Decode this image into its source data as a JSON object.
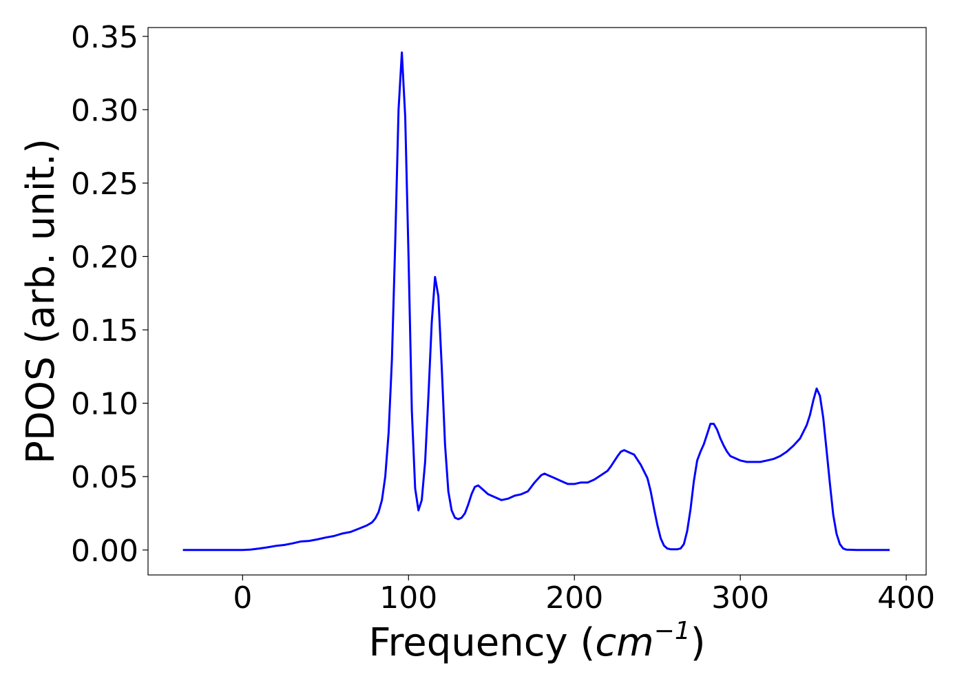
{
  "chart_data": {
    "type": "line",
    "title": "",
    "xlabel": "Frequency (",
    "xlabel_math": "cm",
    "xlabel_sup": "−1",
    "xlabel_close": ")",
    "ylabel": "PDOS (arb. unit.)",
    "xlim": [
      -57,
      412
    ],
    "ylim": [
      -0.017,
      0.356
    ],
    "xticks": [
      0,
      100,
      200,
      300,
      400
    ],
    "xtick_labels": [
      "0",
      "100",
      "200",
      "300",
      "400"
    ],
    "yticks": [
      0.0,
      0.05,
      0.1,
      0.15,
      0.2,
      0.25,
      0.3,
      0.35
    ],
    "ytick_labels": [
      "0.00",
      "0.05",
      "0.10",
      "0.15",
      "0.20",
      "0.25",
      "0.30",
      "0.35"
    ],
    "grid": false,
    "legend": "none",
    "color": "#0000ff",
    "series": [
      {
        "x": [
          -36,
          -20,
          0,
          5,
          10,
          15,
          20,
          25,
          30,
          35,
          40,
          45,
          50,
          55,
          60,
          65,
          70,
          75,
          78,
          80,
          82,
          84,
          86,
          88,
          90,
          92,
          94,
          96,
          98,
          100,
          102,
          104,
          106,
          108,
          110,
          112,
          114,
          116,
          118,
          120,
          122,
          124,
          126,
          128,
          130,
          132,
          134,
          136,
          138,
          140,
          142,
          144,
          146,
          148,
          152,
          156,
          160,
          164,
          168,
          172,
          176,
          180,
          182,
          184,
          188,
          192,
          196,
          200,
          204,
          208,
          212,
          216,
          220,
          222,
          226,
          228,
          230,
          232,
          236,
          240,
          244,
          246,
          248,
          250,
          252,
          254,
          256,
          258,
          262,
          264,
          266,
          268,
          270,
          272,
          274,
          276,
          278,
          280,
          282,
          284,
          286,
          288,
          290,
          292,
          294,
          296,
          300,
          304,
          308,
          312,
          316,
          320,
          324,
          328,
          332,
          336,
          340,
          342,
          344,
          346,
          348,
          350,
          352,
          354,
          356,
          358,
          360,
          362,
          364,
          370,
          390
        ],
        "y": [
          0.0,
          0.0,
          0.0,
          0.0003,
          0.001,
          0.0018,
          0.0028,
          0.0034,
          0.0045,
          0.0058,
          0.0062,
          0.0072,
          0.0085,
          0.0095,
          0.0112,
          0.0123,
          0.0145,
          0.0168,
          0.0188,
          0.0215,
          0.026,
          0.034,
          0.05,
          0.08,
          0.13,
          0.21,
          0.3,
          0.339,
          0.295,
          0.2,
          0.095,
          0.042,
          0.027,
          0.034,
          0.06,
          0.105,
          0.155,
          0.186,
          0.173,
          0.125,
          0.072,
          0.04,
          0.027,
          0.022,
          0.021,
          0.022,
          0.025,
          0.031,
          0.038,
          0.043,
          0.044,
          0.042,
          0.04,
          0.038,
          0.036,
          0.034,
          0.035,
          0.037,
          0.038,
          0.04,
          0.046,
          0.051,
          0.052,
          0.051,
          0.049,
          0.047,
          0.045,
          0.045,
          0.046,
          0.046,
          0.048,
          0.051,
          0.054,
          0.057,
          0.064,
          0.067,
          0.068,
          0.067,
          0.065,
          0.058,
          0.049,
          0.04,
          0.028,
          0.017,
          0.008,
          0.003,
          0.001,
          0.0005,
          0.0005,
          0.001,
          0.004,
          0.013,
          0.028,
          0.047,
          0.061,
          0.067,
          0.072,
          0.079,
          0.086,
          0.086,
          0.082,
          0.076,
          0.071,
          0.067,
          0.064,
          0.063,
          0.061,
          0.06,
          0.06,
          0.06,
          0.061,
          0.062,
          0.064,
          0.067,
          0.071,
          0.076,
          0.085,
          0.092,
          0.102,
          0.11,
          0.105,
          0.09,
          0.068,
          0.045,
          0.024,
          0.011,
          0.004,
          0.001,
          0.0002,
          0.0,
          0.0
        ]
      }
    ]
  }
}
